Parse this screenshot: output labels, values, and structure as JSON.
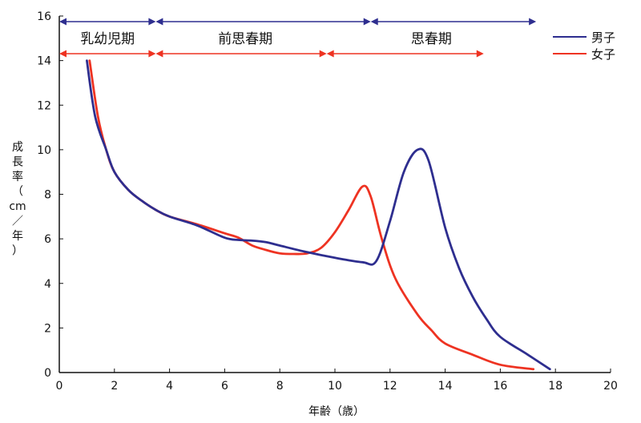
{
  "chart_data": {
    "type": "line",
    "xlabel": "年齢（歳）",
    "ylabel_chars": [
      "成",
      "長",
      "率",
      "（",
      "cm",
      "／",
      "年",
      "）"
    ],
    "xlim": [
      0,
      20
    ],
    "ylim": [
      0,
      16
    ],
    "x_ticks": [
      "0",
      "2",
      "4",
      "6",
      "8",
      "10",
      "12",
      "14",
      "16",
      "18",
      "20"
    ],
    "y_ticks": [
      "0",
      "2",
      "4",
      "6",
      "8",
      "10",
      "12",
      "14",
      "16"
    ],
    "grid": false,
    "legend_position": "top-right",
    "series": [
      {
        "name": "男子",
        "color": "#2e2e8f",
        "points": [
          [
            1.0,
            14.0
          ],
          [
            1.3,
            11.5
          ],
          [
            1.7,
            10.0
          ],
          [
            2.0,
            9.0
          ],
          [
            2.5,
            8.2
          ],
          [
            3.0,
            7.7
          ],
          [
            3.5,
            7.3
          ],
          [
            4.0,
            7.0
          ],
          [
            5.0,
            6.6
          ],
          [
            6.0,
            6.05
          ],
          [
            6.5,
            5.95
          ],
          [
            7.0,
            5.92
          ],
          [
            7.5,
            5.85
          ],
          [
            8.0,
            5.7
          ],
          [
            9.0,
            5.4
          ],
          [
            10.0,
            5.15
          ],
          [
            11.0,
            4.95
          ],
          [
            11.5,
            5.0
          ],
          [
            12.0,
            6.8
          ],
          [
            12.5,
            9.0
          ],
          [
            13.0,
            10.0
          ],
          [
            13.4,
            9.5
          ],
          [
            14.0,
            6.5
          ],
          [
            14.5,
            4.7
          ],
          [
            15.0,
            3.4
          ],
          [
            15.5,
            2.4
          ],
          [
            16.0,
            1.6
          ],
          [
            17.0,
            0.8
          ],
          [
            17.8,
            0.15
          ]
        ]
      },
      {
        "name": "女子",
        "color": "#ee3322",
        "points": [
          [
            1.1,
            14.0
          ],
          [
            1.4,
            11.5
          ],
          [
            1.7,
            10.0
          ],
          [
            2.0,
            9.0
          ],
          [
            2.5,
            8.2
          ],
          [
            3.0,
            7.7
          ],
          [
            3.5,
            7.3
          ],
          [
            4.0,
            7.0
          ],
          [
            5.0,
            6.65
          ],
          [
            6.0,
            6.25
          ],
          [
            6.5,
            6.05
          ],
          [
            7.0,
            5.7
          ],
          [
            7.5,
            5.5
          ],
          [
            8.0,
            5.35
          ],
          [
            8.5,
            5.32
          ],
          [
            9.0,
            5.35
          ],
          [
            9.5,
            5.6
          ],
          [
            10.0,
            6.3
          ],
          [
            10.5,
            7.3
          ],
          [
            11.0,
            8.35
          ],
          [
            11.3,
            7.9
          ],
          [
            11.7,
            6.0
          ],
          [
            12.2,
            4.2
          ],
          [
            13.0,
            2.6
          ],
          [
            13.5,
            1.9
          ],
          [
            14.0,
            1.3
          ],
          [
            15.0,
            0.8
          ],
          [
            16.0,
            0.35
          ],
          [
            17.2,
            0.15
          ]
        ]
      }
    ],
    "phases": [
      {
        "label": "乳幼児期",
        "boys": [
          0,
          3.5
        ],
        "girls": [
          0,
          3.5
        ],
        "label_x": 1.75
      },
      {
        "label": "前思春期",
        "boys": [
          3.5,
          11.3
        ],
        "girls": [
          3.5,
          9.7
        ],
        "label_x": 6.75
      },
      {
        "label": "思春期",
        "boys": [
          11.3,
          17.3
        ],
        "girls": [
          9.7,
          15.4
        ],
        "label_x": 13.5
      }
    ]
  },
  "colors": {
    "boys": "#2e2e8f",
    "girls": "#ee3322",
    "axis": "#111111"
  }
}
